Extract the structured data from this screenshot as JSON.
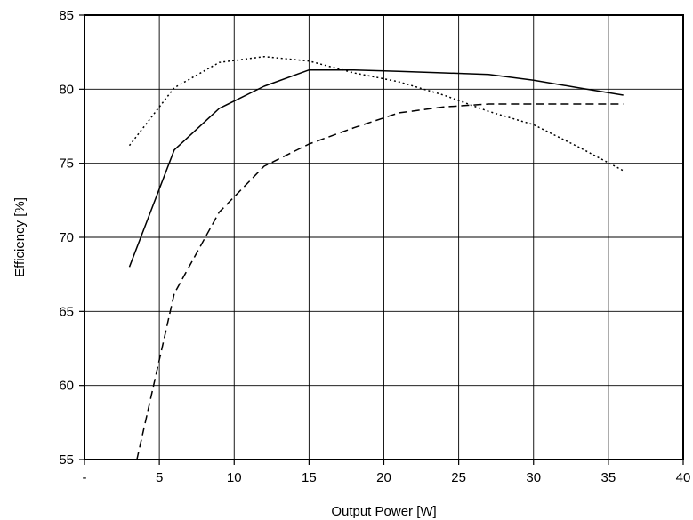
{
  "chart_data": {
    "type": "line",
    "title": "",
    "xlabel": "Output Power [W]",
    "ylabel": "Efficiency [%]",
    "xlim": [
      0,
      40
    ],
    "ylim": [
      55,
      85
    ],
    "xticks": [
      0,
      5,
      10,
      15,
      20,
      25,
      30,
      35,
      40
    ],
    "xtick_labels": [
      "-",
      "5",
      "10",
      "15",
      "20",
      "25",
      "30",
      "35",
      "40"
    ],
    "yticks": [
      55,
      60,
      65,
      70,
      75,
      80,
      85
    ],
    "ytick_labels": [
      "55",
      "60",
      "65",
      "70",
      "75",
      "80",
      "85"
    ],
    "grid": true,
    "legend": "none",
    "series": [
      {
        "style": "solid",
        "x": [
          3,
          6,
          9,
          12,
          15,
          18,
          21,
          24,
          27,
          30,
          33,
          36
        ],
        "y": [
          68.0,
          75.9,
          78.7,
          80.2,
          81.3,
          81.3,
          81.2,
          81.1,
          81.0,
          80.6,
          80.1,
          79.6
        ]
      },
      {
        "style": "dotted",
        "x": [
          3,
          6,
          9,
          12,
          15,
          18,
          21,
          24,
          27,
          30,
          33,
          36
        ],
        "y": [
          76.2,
          80.1,
          81.8,
          82.2,
          81.9,
          81.1,
          80.5,
          79.6,
          78.5,
          77.6,
          76.1,
          74.5
        ]
      },
      {
        "style": "dashed",
        "x": [
          3.5,
          6,
          9,
          12,
          15,
          18,
          21,
          24,
          27,
          30,
          33,
          36
        ],
        "y": [
          55.0,
          66.2,
          71.7,
          74.8,
          76.3,
          77.4,
          78.4,
          78.8,
          79.0,
          79.0,
          79.0,
          79.0
        ]
      }
    ]
  }
}
